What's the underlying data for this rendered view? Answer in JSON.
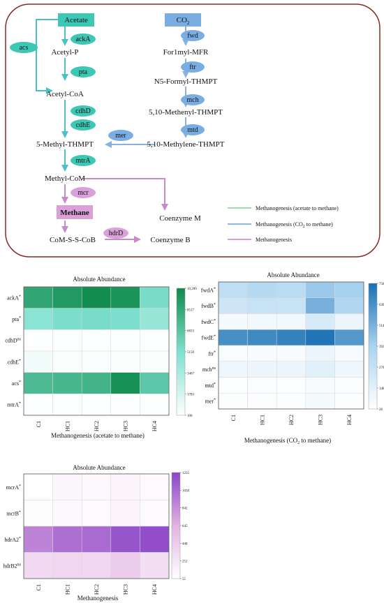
{
  "pathway": {
    "nodes": {
      "acetate": "Acetate",
      "acetyl_p": "Acetyl-P",
      "acetyl_coa": "Acetyl-CoA",
      "methyl_thmpt": "5-Methyl-THMPT",
      "methyl_com": "Methyl-CoM",
      "methane": "Methane",
      "com_s_s_cob": "CoM-S-S-CoB",
      "co2": "CO",
      "co2_sub": "2",
      "formyl_mfr": "For1myl-MFR",
      "n5_formyl": "N5-Formyl-THMPT",
      "methenyl": "5,10-Methenyl-THMPT",
      "methylene": "5,10-Methylene-THMPT",
      "coenzyme_m": "Coenzyme  M",
      "coenzyme_b": "Coenzyme B"
    },
    "enzymes": {
      "acs": "acs",
      "ackA": "ackA",
      "pta": "pta",
      "cdhD": "cdhD",
      "cdhE": "cdhE",
      "mtrA": "mtrA",
      "mcr": "mcr",
      "hdrD": "hdrD",
      "fwd": "fwd",
      "ftr": "ftr",
      "mch": "mch",
      "mtd": "mtd",
      "mer": "mer"
    },
    "legend": [
      {
        "label": "Methanogenesis (acetate to methane)",
        "color": "#7fd08e"
      },
      {
        "label": "Methanogenesis (CO",
        "sub": "2",
        "tail": " to methane)",
        "color": "#6f9fd8"
      },
      {
        "label": "Methanogenesis",
        "color": "#c77ec9"
      }
    ],
    "colors": {
      "border": "#8b2a1f",
      "teal": "#3cc8b4",
      "blue": "#7aaee2",
      "pink": "#d9a0d9",
      "teal_line": "#4cc0c8",
      "blue_line": "#8ab2e0",
      "pink_line": "#c98acb"
    }
  },
  "heatmaps": [
    {
      "title": "Absolute Abundance",
      "xlabel": "Methanogenesis (acetate to methane)",
      "columns": [
        "C1",
        "HC1",
        "HC2",
        "HC3",
        "HC4"
      ],
      "rows": [
        {
          "label": "ackA",
          "sig": "*",
          "values": [
            8600,
            9300,
            10000,
            9600,
            5400
          ]
        },
        {
          "label": "pta",
          "sig": "*",
          "values": [
            4700,
            5300,
            5400,
            5200,
            4200
          ]
        },
        {
          "label": "cdhD",
          "sig": "ns",
          "values": [
            180,
            150,
            140,
            150,
            160
          ]
        },
        {
          "label": "cdhE",
          "sig": "*",
          "values": [
            600,
            300,
            250,
            300,
            300
          ]
        },
        {
          "label": "acs",
          "sig": "*",
          "values": [
            7400,
            7600,
            7800,
            9800,
            6600
          ]
        },
        {
          "label": "mtrA",
          "sig": "*",
          "values": [
            150,
            130,
            120,
            120,
            130
          ]
        }
      ],
      "scale": {
        "min": 100,
        "max": 10200,
        "ticks": [
          "10,200",
          "8517",
          "6833",
          "5150",
          "3467",
          "1783",
          "100"
        ]
      },
      "colors": [
        "#ffffff",
        "#7fe0cf",
        "#0e8a4a"
      ]
    },
    {
      "title": "Absolute Abundance",
      "xlabel": "Methanogenesis (CO",
      "xlabel_sub": "2",
      "xlabel_tail": " to methane)",
      "columns": [
        "C1",
        "HC1",
        "HC2",
        "HC3",
        "HC4"
      ],
      "rows": [
        {
          "label": "fwdA",
          "sig": "*",
          "values": [
            300,
            340,
            320,
            430,
            400
          ]
        },
        {
          "label": "fwdB",
          "sig": "*",
          "values": [
            240,
            270,
            260,
            520,
            360
          ]
        },
        {
          "label": "fwdC",
          "sig": "*",
          "values": [
            70,
            80,
            80,
            200,
            110
          ]
        },
        {
          "label": "fwdE",
          "sig": "*",
          "values": [
            640,
            660,
            690,
            740,
            610
          ]
        },
        {
          "label": "ftr",
          "sig": "*",
          "values": [
            50,
            60,
            60,
            110,
            60
          ]
        },
        {
          "label": "mch",
          "sig": "ns",
          "values": [
            90,
            100,
            110,
            150,
            90
          ]
        },
        {
          "label": "mtd",
          "sig": "*",
          "values": [
            30,
            40,
            35,
            60,
            40
          ]
        },
        {
          "label": "mer",
          "sig": "*",
          "values": [
            40,
            40,
            40,
            70,
            45
          ]
        }
      ],
      "scale": {
        "min": 26,
        "max": 758,
        "ticks": [
          "758",
          "636",
          "514",
          "392",
          "270",
          "148",
          "26"
        ]
      },
      "colors": [
        "#ffffff",
        "#a9d3ef",
        "#1a6fb2"
      ]
    },
    {
      "title": "Absolute Abundance",
      "xlabel": "Methanogenesis",
      "columns": [
        "C1",
        "HC1",
        "HC2",
        "HC3",
        "HC4"
      ],
      "rows": [
        {
          "label": "mcrA",
          "sig": "*",
          "values": [
            60,
            120,
            110,
            140,
            100
          ]
        },
        {
          "label": "mcrB",
          "sig": "*",
          "values": [
            70,
            110,
            100,
            130,
            90
          ]
        },
        {
          "label": "hdrA2",
          "sig": "*",
          "values": [
            900,
            1000,
            1030,
            1150,
            1190
          ]
        },
        {
          "label": "hdrB2",
          "sig": "ns",
          "values": [
            350,
            360,
            370,
            440,
            300
          ]
        }
      ],
      "scale": {
        "min": 55,
        "max": 1235,
        "ticks": [
          "1235",
          "1038",
          "842",
          "645",
          "448",
          "252",
          "55"
        ]
      },
      "colors": [
        "#ffffff",
        "#e2b2e2",
        "#8a45c8"
      ]
    }
  ]
}
